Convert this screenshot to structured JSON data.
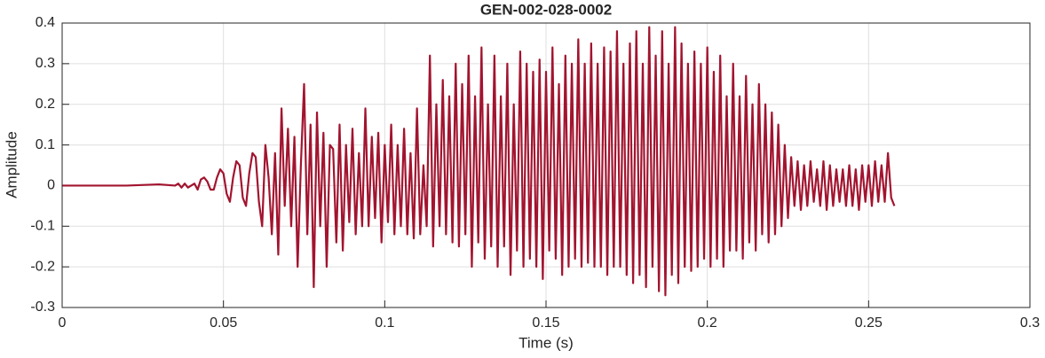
{
  "chart_data": {
    "type": "line",
    "title": "GEN-002-028-0002",
    "xlabel": "Time (s)",
    "ylabel": "Amplitude",
    "color": "#a2142f",
    "grid": true,
    "xlim": [
      0,
      0.3
    ],
    "xticks": [
      0,
      0.05,
      0.1,
      0.15,
      0.2,
      0.25,
      0.3
    ],
    "ylim": [
      -0.3,
      0.4
    ],
    "yticks": [
      -0.3,
      -0.2,
      -0.1,
      0,
      0.1,
      0.2,
      0.3,
      0.4
    ],
    "x": [
      0,
      0.01,
      0.02,
      0.03,
      0.035,
      0.036,
      0.037,
      0.038,
      0.039,
      0.04,
      0.041,
      0.042,
      0.043,
      0.044,
      0.045,
      0.046,
      0.047,
      0.048,
      0.049,
      0.05,
      0.051,
      0.052,
      0.053,
      0.054,
      0.055,
      0.056,
      0.057,
      0.058,
      0.059,
      0.06,
      0.061,
      0.062,
      0.063,
      0.064,
      0.065,
      0.066,
      0.067,
      0.068,
      0.069,
      0.07,
      0.071,
      0.072,
      0.073,
      0.074,
      0.075,
      0.076,
      0.077,
      0.078,
      0.079,
      0.08,
      0.081,
      0.082,
      0.083,
      0.084,
      0.085,
      0.086,
      0.087,
      0.088,
      0.089,
      0.09,
      0.091,
      0.092,
      0.093,
      0.094,
      0.095,
      0.096,
      0.097,
      0.098,
      0.099,
      0.1,
      0.101,
      0.102,
      0.103,
      0.104,
      0.105,
      0.106,
      0.107,
      0.108,
      0.109,
      0.11,
      0.111,
      0.112,
      0.113,
      0.114,
      0.115,
      0.116,
      0.117,
      0.118,
      0.119,
      0.12,
      0.121,
      0.122,
      0.123,
      0.124,
      0.125,
      0.126,
      0.127,
      0.128,
      0.129,
      0.13,
      0.131,
      0.132,
      0.133,
      0.134,
      0.135,
      0.136,
      0.137,
      0.138,
      0.139,
      0.14,
      0.141,
      0.142,
      0.143,
      0.144,
      0.145,
      0.146,
      0.147,
      0.148,
      0.149,
      0.15,
      0.151,
      0.152,
      0.153,
      0.154,
      0.155,
      0.156,
      0.157,
      0.158,
      0.159,
      0.16,
      0.161,
      0.162,
      0.163,
      0.164,
      0.165,
      0.166,
      0.167,
      0.168,
      0.169,
      0.17,
      0.171,
      0.172,
      0.173,
      0.174,
      0.175,
      0.176,
      0.177,
      0.178,
      0.179,
      0.18,
      0.181,
      0.182,
      0.183,
      0.184,
      0.185,
      0.186,
      0.187,
      0.188,
      0.189,
      0.19,
      0.191,
      0.192,
      0.193,
      0.194,
      0.195,
      0.196,
      0.197,
      0.198,
      0.199,
      0.2,
      0.201,
      0.202,
      0.203,
      0.204,
      0.205,
      0.206,
      0.207,
      0.208,
      0.209,
      0.21,
      0.211,
      0.212,
      0.213,
      0.214,
      0.215,
      0.216,
      0.217,
      0.218,
      0.219,
      0.22,
      0.221,
      0.222,
      0.223,
      0.224,
      0.225,
      0.226,
      0.227,
      0.228,
      0.229,
      0.23,
      0.231,
      0.232,
      0.233,
      0.234,
      0.235,
      0.236,
      0.237,
      0.238,
      0.239,
      0.24,
      0.241,
      0.242,
      0.243,
      0.244,
      0.245,
      0.246,
      0.247,
      0.248,
      0.249,
      0.25,
      0.251,
      0.252,
      0.253,
      0.254,
      0.255,
      0.256,
      0.257,
      0.258
    ],
    "values": [
      0,
      0,
      0,
      0.003,
      0,
      0.005,
      -0.005,
      0.005,
      -0.005,
      0,
      0.005,
      -0.01,
      0.015,
      0.02,
      0.01,
      -0.01,
      -0.01,
      0.02,
      0.04,
      0.03,
      -0.02,
      -0.04,
      0.02,
      0.06,
      0.05,
      -0.03,
      -0.05,
      0.03,
      0.08,
      0.07,
      -0.04,
      -0.1,
      0.1,
      0.02,
      -0.12,
      0.08,
      -0.17,
      0.19,
      -0.05,
      0.14,
      -0.1,
      0.12,
      -0.2,
      0.05,
      0.25,
      -0.12,
      0.15,
      -0.25,
      0.18,
      -0.1,
      0.13,
      -0.2,
      0.1,
      0.09,
      -0.14,
      0.15,
      -0.16,
      0.1,
      -0.09,
      0.14,
      -0.12,
      0.08,
      -0.1,
      0.19,
      -0.1,
      0.12,
      -0.08,
      0.13,
      -0.14,
      0.1,
      -0.09,
      0.15,
      -0.12,
      0.1,
      -0.1,
      0.14,
      -0.12,
      0.08,
      -0.13,
      0.19,
      -0.12,
      0.05,
      -0.1,
      0.32,
      -0.15,
      0.2,
      -0.1,
      0.26,
      -0.12,
      0.22,
      -0.14,
      0.3,
      -0.15,
      0.25,
      -0.12,
      0.32,
      -0.2,
      0.22,
      -0.14,
      0.34,
      -0.18,
      0.2,
      -0.15,
      0.32,
      -0.2,
      0.22,
      -0.15,
      0.3,
      -0.22,
      0.2,
      -0.16,
      0.33,
      -0.2,
      0.3,
      -0.18,
      0.28,
      -0.2,
      0.31,
      -0.23,
      0.28,
      -0.16,
      0.34,
      -0.18,
      0.25,
      -0.22,
      0.32,
      -0.2,
      0.3,
      -0.18,
      0.36,
      -0.2,
      0.3,
      -0.19,
      0.35,
      -0.2,
      0.3,
      -0.2,
      0.34,
      -0.22,
      0.33,
      -0.2,
      0.38,
      -0.2,
      0.3,
      -0.22,
      0.35,
      -0.24,
      0.38,
      -0.22,
      0.3,
      -0.25,
      0.39,
      -0.2,
      0.32,
      -0.26,
      0.38,
      -0.27,
      0.3,
      -0.22,
      0.39,
      -0.24,
      0.35,
      -0.2,
      0.3,
      -0.21,
      0.33,
      -0.2,
      0.3,
      -0.18,
      0.34,
      -0.2,
      0.28,
      -0.18,
      0.32,
      -0.2,
      0.22,
      -0.16,
      0.3,
      -0.16,
      0.22,
      -0.18,
      0.27,
      -0.14,
      0.2,
      -0.16,
      0.25,
      -0.12,
      0.2,
      -0.14,
      0.18,
      -0.12,
      0.15,
      -0.1,
      0.1,
      -0.08,
      0.07,
      -0.05,
      0.06,
      -0.06,
      0.05,
      -0.05,
      0.06,
      -0.04,
      0.04,
      -0.05,
      0.06,
      -0.06,
      0.05,
      -0.05,
      0.04,
      -0.04,
      0.04,
      -0.05,
      0.05,
      -0.05,
      0.04,
      -0.06,
      0.05,
      -0.04,
      0.05,
      -0.05,
      0.06,
      -0.04,
      0.05,
      -0.04,
      0.08,
      -0.03,
      -0.05
    ]
  }
}
